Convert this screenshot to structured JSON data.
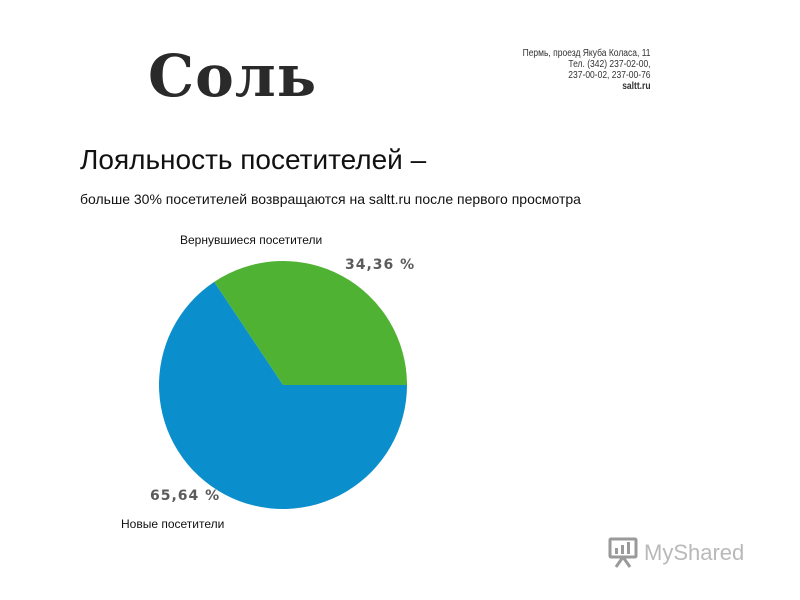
{
  "header": {
    "logo_text": "Соль",
    "contacts": [
      "Пермь, проезд Якуба Коласа, 11",
      "Тел. (342) 237-02-00,",
      "237-00-02, 237-00-76",
      "saltt.ru"
    ]
  },
  "slide": {
    "title": "Лояльность посетителей –",
    "subtitle": "больше 30% посетителей  возвращаются на saltt.ru после первого просмотра"
  },
  "chart_data": {
    "type": "pie",
    "slices": [
      {
        "label": "Вернувшиеся посетители",
        "value": 34.36,
        "value_text": "34,36  %",
        "color": "#4fb233"
      },
      {
        "label": "Новые посетители",
        "value": 65.64,
        "value_text": "65,64  %",
        "color": "#0b8fcc"
      }
    ]
  },
  "watermark": {
    "text": "MyShared",
    "icon": "presentation-board-icon"
  }
}
